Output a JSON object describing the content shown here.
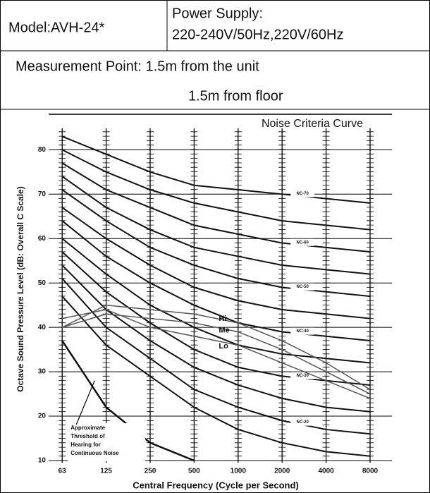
{
  "table": {
    "model": "Model:AVH-24*",
    "power_title": "Power Supply:",
    "power_value": "220-240V/50Hz,220V/60Hz",
    "measurement": "Measurement Point: 1.5m from the unit",
    "measurement_2": "1.5m from floor"
  },
  "chart_data": {
    "type": "line",
    "title": "Noise Criteria Curve",
    "x_label": "Central Frequency (Cycle per Second)",
    "y_label": "Octave Sound Pressure Level (dB: Overall C Scale)",
    "categories": [
      "63",
      "125",
      "250",
      "500",
      "1000",
      "2000",
      "4000",
      "8000"
    ],
    "ylim": [
      10,
      88
    ],
    "yticks": [
      10,
      20,
      30,
      40,
      50,
      60,
      70,
      80
    ],
    "grid": true,
    "series": [
      {
        "values": [
          47,
          36,
          29,
          22,
          17,
          14,
          12,
          11
        ],
        "color": "#111"
      },
      {
        "name": "NC-20",
        "values": [
          51,
          40,
          33,
          26,
          22,
          19,
          17,
          16
        ],
        "color": "#111"
      },
      {
        "values": [
          54,
          44,
          37,
          31,
          27,
          24,
          22,
          21
        ],
        "color": "#111"
      },
      {
        "name": "NC-30",
        "values": [
          57,
          48,
          41,
          35,
          31,
          29,
          28,
          27
        ],
        "color": "#111"
      },
      {
        "values": [
          60,
          52,
          45,
          40,
          36,
          34,
          33,
          32
        ],
        "color": "#111"
      },
      {
        "name": "NC-40",
        "values": [
          64,
          56,
          50,
          45,
          41,
          39,
          38,
          37
        ],
        "color": "#111"
      },
      {
        "values": [
          67,
          60,
          54,
          49,
          46,
          44,
          43,
          42
        ],
        "color": "#111"
      },
      {
        "name": "NC-50",
        "values": [
          71,
          64,
          58,
          54,
          51,
          49,
          48,
          47
        ],
        "color": "#111"
      },
      {
        "values": [
          74,
          67,
          62,
          58,
          56,
          54,
          53,
          52
        ],
        "color": "#111"
      },
      {
        "name": "NC-60",
        "values": [
          77,
          71,
          67,
          63,
          61,
          59,
          58,
          57
        ],
        "color": "#111"
      },
      {
        "values": [
          80,
          75,
          71,
          68,
          66,
          64,
          63,
          62
        ],
        "color": "#111"
      },
      {
        "name": "NC-70",
        "values": [
          83,
          79,
          75,
          72,
          71,
          70,
          69,
          68
        ],
        "color": "#111"
      }
    ],
    "units": [
      {
        "name": "Hi",
        "values": [
          40,
          45,
          44,
          43,
          41,
          37,
          32,
          26
        ],
        "color": "#555"
      },
      {
        "name": "Me",
        "values": [
          40,
          43,
          42,
          41,
          39,
          35,
          30,
          25
        ],
        "color": "#555"
      },
      {
        "name": "Lo",
        "values": [
          42,
          44,
          40,
          38,
          36,
          32,
          28,
          24
        ],
        "color": "#555"
      }
    ],
    "threshold": {
      "lines": [
        "Approximate",
        "Threshold of",
        "Hearing for",
        "Continuous Noise"
      ],
      "values": [
        37,
        22,
        14,
        10,
        null,
        null,
        null,
        null
      ],
      "color": "#111"
    }
  }
}
